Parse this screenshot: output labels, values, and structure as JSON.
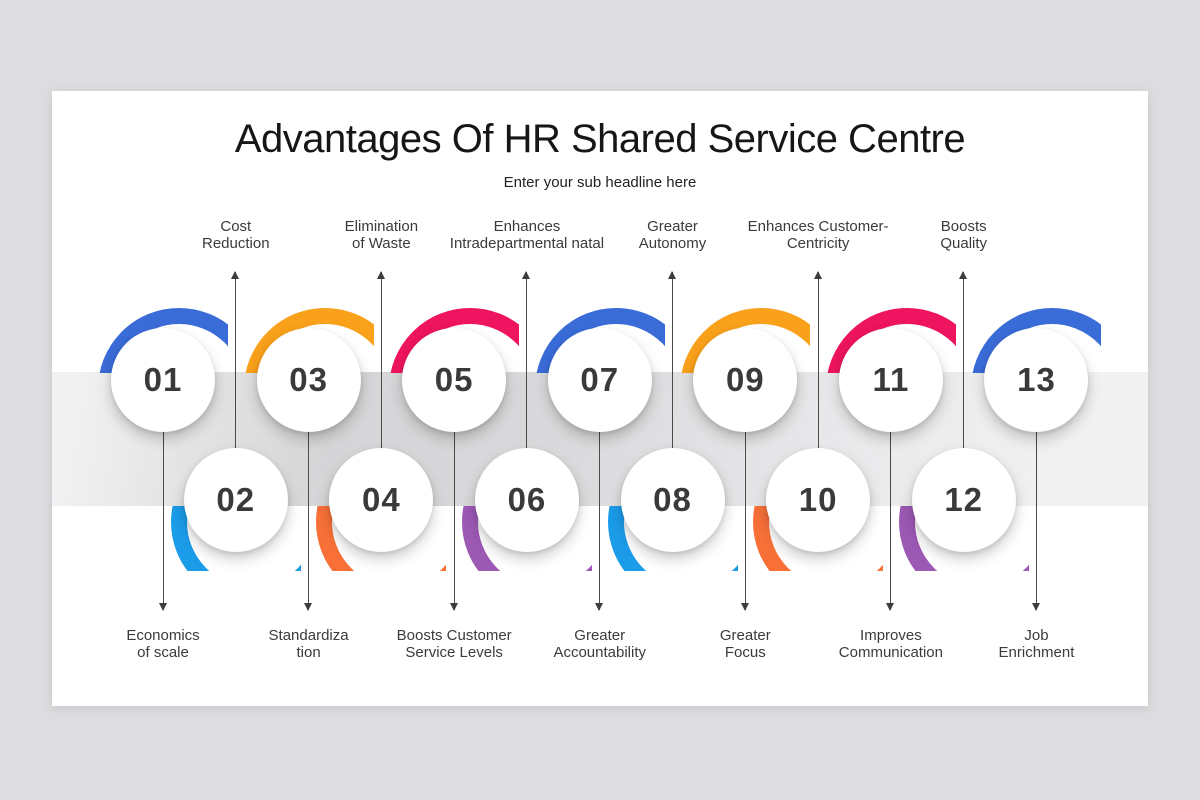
{
  "header": {
    "title": "Advantages Of HR Shared Service Centre",
    "subtitle": "Enter your sub headline here"
  },
  "palette": {
    "blue": "#3a6cd8",
    "cyan": "#1b9ce9",
    "amber": "#f9a11b",
    "orange": "#f87038",
    "pink": "#ee145f",
    "purple": "#9c59b4",
    "arrow": "#4a4a4a",
    "number_text": "#3a3a3a",
    "outer_background": "#dddde0"
  },
  "items": [
    {
      "number": "01",
      "row": "top",
      "color": "#3a6cd8",
      "label": [
        "Economics",
        "of scale"
      ]
    },
    {
      "number": "02",
      "row": "bottom",
      "color": "#1b9ce9",
      "label": [
        "Cost",
        "Reduction"
      ]
    },
    {
      "number": "03",
      "row": "top",
      "color": "#f9a11b",
      "label": [
        "Standardiza",
        "tion"
      ]
    },
    {
      "number": "04",
      "row": "bottom",
      "color": "#f87038",
      "label": [
        "Elimination",
        "of Waste"
      ]
    },
    {
      "number": "05",
      "row": "top",
      "color": "#ee145f",
      "label": [
        "Boosts Customer",
        "Service Levels"
      ]
    },
    {
      "number": "06",
      "row": "bottom",
      "color": "#9c59b4",
      "label": [
        "Enhances",
        "Intradepartmental natal"
      ]
    },
    {
      "number": "07",
      "row": "top",
      "color": "#3a6cd8",
      "label": [
        "Greater",
        "Accountability"
      ]
    },
    {
      "number": "08",
      "row": "bottom",
      "color": "#1b9ce9",
      "label": [
        "Greater",
        "Autonomy"
      ]
    },
    {
      "number": "09",
      "row": "top",
      "color": "#f9a11b",
      "label": [
        "Greater",
        "Focus"
      ]
    },
    {
      "number": "10",
      "row": "bottom",
      "color": "#f87038",
      "label": [
        "Enhances Customer-",
        "Centricity"
      ]
    },
    {
      "number": "11",
      "row": "top",
      "color": "#ee145f",
      "label": [
        "Improves",
        "Communication"
      ]
    },
    {
      "number": "12",
      "row": "bottom",
      "color": "#9c59b4",
      "label": [
        "Boosts",
        "Quality"
      ]
    },
    {
      "number": "13",
      "row": "top",
      "color": "#3a6cd8",
      "label": [
        "Job",
        "Enrichment"
      ]
    }
  ]
}
